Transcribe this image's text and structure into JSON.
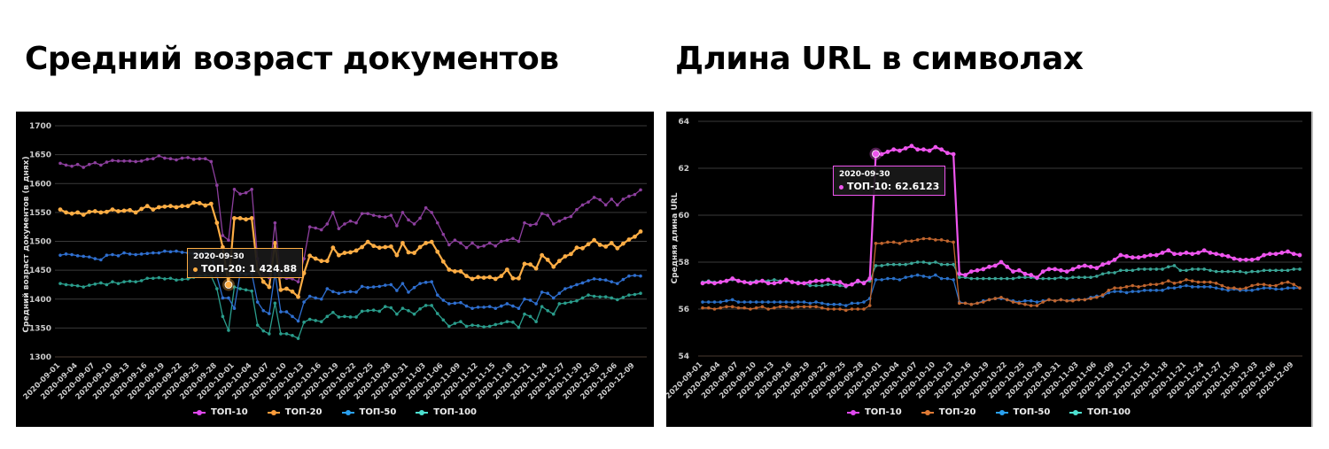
{
  "titles": [
    "Средний возраст документов",
    "Длина URL в символах"
  ],
  "chart_data": [
    {
      "type": "line",
      "title": "Средний возраст документов",
      "ylabel": "Средний возраст документов (в днях)",
      "xlabel": "",
      "x_range": [
        "2020-09-01",
        "2020-12-10"
      ],
      "x_step": "1 day",
      "x_tick_labels": [
        "2020-09-01",
        "2020-09-04",
        "2020-09-07",
        "2020-09-10",
        "2020-09-13",
        "2020-09-16",
        "2020-09-19",
        "2020-09-22",
        "2020-09-25",
        "2020-09-28",
        "2020-10-01",
        "2020-10-04",
        "2020-10-07",
        "2020-10-10",
        "2020-10-13",
        "2020-10-16",
        "2020-10-19",
        "2020-10-22",
        "2020-10-25",
        "2020-10-28",
        "2020-10-31",
        "2020-11-03",
        "2020-11-06",
        "2020-11-09",
        "2020-11-12",
        "2020-11-15",
        "2020-11-18",
        "2020-11-21",
        "2020-11-24",
        "2020-11-27",
        "2020-11-30",
        "2020-12-03",
        "2020-12-06",
        "2020-12-09"
      ],
      "ylim": [
        1300,
        1700
      ],
      "y_ticks": [
        "1300",
        "1350",
        "1400",
        "1450",
        "1500",
        "1550",
        "1600",
        "1650",
        "1700"
      ],
      "grid": true,
      "legend_position": "bottom",
      "tooltip": {
        "date": "2020-09-30",
        "label": "ТОП-20: 1 424.88",
        "series": 1,
        "index": 29
      },
      "series": [
        {
          "name": "ТОП-10",
          "color": "#8d3f9e",
          "legend_color": "#e048f0",
          "values": [
            1635,
            1632,
            1630,
            1633,
            1628,
            1633,
            1636,
            1632,
            1637,
            1640,
            1639,
            1639,
            1639,
            1638,
            1639,
            1642,
            1643,
            1648,
            1644,
            1643,
            1641,
            1644,
            1645,
            1642,
            1643,
            1643,
            1638,
            1597,
            1510,
            1502,
            1590,
            1582,
            1584,
            1590,
            1470,
            1440,
            1437,
            1532,
            1438,
            1436,
            1435,
            1430,
            1470,
            1525,
            1523,
            1520,
            1530,
            1550,
            1522,
            1530,
            1535,
            1532,
            1548,
            1548,
            1545,
            1543,
            1542,
            1545,
            1527,
            1550,
            1537,
            1530,
            1540,
            1558,
            1550,
            1532,
            1512,
            1494,
            1502,
            1497,
            1489,
            1497,
            1490,
            1492,
            1497,
            1492,
            1500,
            1502,
            1505,
            1500,
            1532,
            1528,
            1530,
            1548,
            1545,
            1530,
            1535,
            1540,
            1543,
            1555,
            1563,
            1568,
            1576,
            1572,
            1563,
            1573,
            1563,
            1573,
            1578,
            1581,
            1589
          ]
        },
        {
          "name": "ТОП-20",
          "color": "#ffae45",
          "legend_color": "#ff9c3a",
          "values": [
            1555,
            1550,
            1548,
            1550,
            1546,
            1551,
            1552,
            1550,
            1551,
            1555,
            1552,
            1553,
            1554,
            1550,
            1556,
            1561,
            1555,
            1559,
            1560,
            1561,
            1559,
            1561,
            1561,
            1567,
            1566,
            1562,
            1565,
            1532,
            1490,
            1424.88,
            1540,
            1540,
            1538,
            1540,
            1450,
            1430,
            1421,
            1497,
            1416,
            1418,
            1413,
            1404,
            1445,
            1475,
            1470,
            1466,
            1466,
            1489,
            1476,
            1480,
            1481,
            1484,
            1490,
            1499,
            1492,
            1489,
            1490,
            1491,
            1476,
            1497,
            1481,
            1480,
            1490,
            1497,
            1499,
            1482,
            1465,
            1451,
            1448,
            1448,
            1440,
            1435,
            1438,
            1437,
            1438,
            1435,
            1440,
            1451,
            1436,
            1436,
            1461,
            1460,
            1453,
            1476,
            1468,
            1456,
            1466,
            1474,
            1478,
            1489,
            1488,
            1495,
            1502,
            1494,
            1491,
            1497,
            1488,
            1496,
            1503,
            1508,
            1517
          ]
        },
        {
          "name": "ТОП-50",
          "color": "#2f6fd0",
          "legend_color": "#2aa0f0",
          "values": [
            1476,
            1478,
            1477,
            1475,
            1474,
            1473,
            1470,
            1468,
            1476,
            1477,
            1475,
            1480,
            1478,
            1477,
            1478,
            1479,
            1480,
            1480,
            1483,
            1482,
            1483,
            1481,
            1480,
            1479,
            1478,
            1480,
            1478,
            1440,
            1402,
            1402,
            1384,
            1445,
            1443,
            1445,
            1395,
            1380,
            1375,
            1445,
            1378,
            1378,
            1370,
            1362,
            1395,
            1405,
            1402,
            1400,
            1418,
            1413,
            1410,
            1412,
            1413,
            1412,
            1422,
            1420,
            1421,
            1422,
            1424,
            1425,
            1415,
            1427,
            1412,
            1420,
            1427,
            1429,
            1430,
            1407,
            1398,
            1392,
            1393,
            1394,
            1388,
            1384,
            1386,
            1386,
            1387,
            1384,
            1388,
            1392,
            1388,
            1384,
            1400,
            1398,
            1392,
            1412,
            1410,
            1402,
            1410,
            1418,
            1421,
            1425,
            1428,
            1432,
            1435,
            1434,
            1433,
            1430,
            1427,
            1434,
            1440,
            1441,
            1440
          ]
        },
        {
          "name": "ТОП-100",
          "color": "#2a9d8c",
          "legend_color": "#4de0d0",
          "values": [
            1427,
            1425,
            1424,
            1423,
            1421,
            1424,
            1426,
            1428,
            1425,
            1430,
            1427,
            1430,
            1431,
            1430,
            1432,
            1436,
            1436,
            1437,
            1435,
            1436,
            1433,
            1434,
            1435,
            1438,
            1440,
            1441,
            1440,
            1418,
            1370,
            1346,
            1421,
            1418,
            1416,
            1414,
            1355,
            1345,
            1340,
            1393,
            1340,
            1340,
            1337,
            1332,
            1360,
            1365,
            1363,
            1361,
            1370,
            1377,
            1369,
            1370,
            1369,
            1369,
            1379,
            1380,
            1381,
            1379,
            1387,
            1385,
            1374,
            1384,
            1380,
            1374,
            1383,
            1389,
            1389,
            1375,
            1364,
            1353,
            1358,
            1361,
            1353,
            1355,
            1354,
            1352,
            1353,
            1356,
            1358,
            1361,
            1360,
            1351,
            1374,
            1370,
            1361,
            1387,
            1380,
            1374,
            1392,
            1393,
            1395,
            1397,
            1402,
            1407,
            1405,
            1404,
            1404,
            1402,
            1399,
            1403,
            1407,
            1408,
            1410
          ]
        }
      ]
    },
    {
      "type": "line",
      "title": "Длина URL в символах",
      "ylabel": "Средняя длина URL",
      "xlabel": "",
      "x_range": [
        "2020-09-01",
        "2020-12-10"
      ],
      "x_step": "1 day",
      "x_tick_labels": [
        "2020-09-01",
        "2020-09-04",
        "2020-09-07",
        "2020-09-10",
        "2020-09-13",
        "2020-09-16",
        "2020-09-19",
        "2020-09-22",
        "2020-09-25",
        "2020-09-28",
        "2020-10-01",
        "2020-10-04",
        "2020-10-07",
        "2020-10-10",
        "2020-10-13",
        "2020-10-16",
        "2020-10-19",
        "2020-10-22",
        "2020-10-25",
        "2020-10-28",
        "2020-10-31",
        "2020-11-03",
        "2020-11-06",
        "2020-11-09",
        "2020-11-12",
        "2020-11-15",
        "2020-11-18",
        "2020-11-21",
        "2020-11-24",
        "2020-11-27",
        "2020-11-30",
        "2020-12-03",
        "2020-12-06",
        "2020-12-09"
      ],
      "ylim": [
        54,
        64
      ],
      "y_ticks": [
        "54",
        "56",
        "58",
        "60",
        "62",
        "64"
      ],
      "grid": true,
      "legend_position": "bottom",
      "tooltip": {
        "date": "2020-09-30",
        "label": "ТОП-10: 62.6123",
        "series": 0,
        "index": 29
      },
      "series": [
        {
          "name": "ТОП-10",
          "color": "#ee55ee",
          "legend_color": "#e048f0",
          "values": [
            57.1,
            57.15,
            57.1,
            57.15,
            57.2,
            57.3,
            57.2,
            57.15,
            57.1,
            57.15,
            57.2,
            57.1,
            57.1,
            57.15,
            57.25,
            57.15,
            57.1,
            57.1,
            57.15,
            57.2,
            57.2,
            57.25,
            57.15,
            57.15,
            57.0,
            57.05,
            57.2,
            57.1,
            57.3,
            62.6123,
            62.6,
            62.7,
            62.8,
            62.75,
            62.85,
            62.95,
            62.8,
            62.8,
            62.75,
            62.9,
            62.8,
            62.65,
            62.6,
            57.5,
            57.45,
            57.6,
            57.65,
            57.7,
            57.8,
            57.85,
            58.0,
            57.8,
            57.6,
            57.65,
            57.5,
            57.45,
            57.34,
            57.6,
            57.7,
            57.7,
            57.65,
            57.6,
            57.7,
            57.8,
            57.85,
            57.8,
            57.75,
            57.9,
            57.97,
            58.1,
            58.3,
            58.25,
            58.2,
            58.2,
            58.25,
            58.3,
            58.3,
            58.4,
            58.5,
            58.35,
            58.35,
            58.4,
            58.35,
            58.4,
            58.5,
            58.4,
            58.35,
            58.3,
            58.25,
            58.15,
            58.1,
            58.1,
            58.1,
            58.15,
            58.3,
            58.35,
            58.35,
            58.4,
            58.45,
            58.35,
            58.3
          ]
        },
        {
          "name": "ТОП-20",
          "color": "#c0652e",
          "legend_color": "#e07a35",
          "values": [
            56.05,
            56.05,
            56.0,
            56.05,
            56.1,
            56.1,
            56.05,
            56.05,
            56.0,
            56.05,
            56.1,
            56.0,
            56.05,
            56.1,
            56.1,
            56.05,
            56.1,
            56.1,
            56.1,
            56.1,
            56.05,
            56.0,
            56.0,
            56.0,
            55.95,
            56.0,
            56.0,
            56.0,
            56.15,
            58.8,
            58.8,
            58.85,
            58.85,
            58.8,
            58.9,
            58.9,
            58.95,
            59.0,
            59.0,
            58.95,
            58.95,
            58.9,
            58.85,
            56.25,
            56.25,
            56.2,
            56.25,
            56.3,
            56.4,
            56.45,
            56.5,
            56.4,
            56.3,
            56.25,
            56.2,
            56.15,
            56.15,
            56.3,
            56.4,
            56.35,
            56.4,
            56.35,
            56.35,
            56.4,
            56.4,
            56.45,
            56.5,
            56.6,
            56.8,
            56.9,
            56.9,
            56.95,
            57.0,
            56.95,
            57.0,
            57.05,
            57.05,
            57.1,
            57.2,
            57.1,
            57.15,
            57.25,
            57.2,
            57.15,
            57.15,
            57.15,
            57.1,
            57.0,
            56.9,
            56.9,
            56.85,
            56.9,
            57.0,
            57.05,
            57.05,
            57.0,
            57.0,
            57.1,
            57.15,
            57.05,
            56.9
          ]
        },
        {
          "name": "ТОП-50",
          "color": "#2a70c8",
          "legend_color": "#2aa0f0",
          "values": [
            56.3,
            56.3,
            56.3,
            56.3,
            56.35,
            56.4,
            56.3,
            56.3,
            56.3,
            56.3,
            56.3,
            56.3,
            56.3,
            56.3,
            56.3,
            56.3,
            56.3,
            56.3,
            56.25,
            56.3,
            56.25,
            56.2,
            56.2,
            56.2,
            56.15,
            56.25,
            56.25,
            56.3,
            56.45,
            57.25,
            57.25,
            57.3,
            57.3,
            57.25,
            57.35,
            57.4,
            57.45,
            57.4,
            57.35,
            57.45,
            57.3,
            57.3,
            57.25,
            56.3,
            56.25,
            56.2,
            56.25,
            56.35,
            56.4,
            56.45,
            56.45,
            56.4,
            56.35,
            56.3,
            56.35,
            56.35,
            56.3,
            56.35,
            56.4,
            56.35,
            56.4,
            56.35,
            56.4,
            56.4,
            56.4,
            56.5,
            56.55,
            56.55,
            56.7,
            56.75,
            56.75,
            56.7,
            56.75,
            56.75,
            56.8,
            56.8,
            56.8,
            56.8,
            56.9,
            56.9,
            56.95,
            57.0,
            56.95,
            56.95,
            56.95,
            56.95,
            56.9,
            56.85,
            56.8,
            56.85,
            56.8,
            56.8,
            56.8,
            56.85,
            56.9,
            56.9,
            56.85,
            56.85,
            56.9,
            56.9,
            56.9
          ]
        },
        {
          "name": "ТОП-100",
          "color": "#3aa596",
          "legend_color": "#4de0d0",
          "values": [
            57.15,
            57.2,
            57.15,
            57.15,
            57.2,
            57.25,
            57.2,
            57.15,
            57.15,
            57.2,
            57.2,
            57.2,
            57.25,
            57.2,
            57.2,
            57.15,
            57.15,
            57.1,
            57.0,
            57.0,
            57.0,
            57.05,
            57.05,
            57.0,
            56.95,
            57.05,
            57.15,
            57.15,
            57.2,
            57.85,
            57.85,
            57.9,
            57.9,
            57.9,
            57.9,
            57.95,
            58.0,
            58.0,
            57.95,
            58.0,
            57.9,
            57.9,
            57.9,
            57.35,
            57.35,
            57.3,
            57.3,
            57.3,
            57.3,
            57.3,
            57.3,
            57.3,
            57.3,
            57.35,
            57.35,
            57.35,
            57.3,
            57.3,
            57.3,
            57.3,
            57.35,
            57.3,
            57.35,
            57.35,
            57.35,
            57.35,
            57.4,
            57.5,
            57.55,
            57.55,
            57.65,
            57.65,
            57.65,
            57.7,
            57.7,
            57.7,
            57.7,
            57.7,
            57.8,
            57.85,
            57.65,
            57.65,
            57.7,
            57.7,
            57.7,
            57.65,
            57.6,
            57.6,
            57.6,
            57.6,
            57.6,
            57.55,
            57.6,
            57.6,
            57.65,
            57.65,
            57.65,
            57.65,
            57.65,
            57.7,
            57.7
          ]
        }
      ]
    }
  ]
}
